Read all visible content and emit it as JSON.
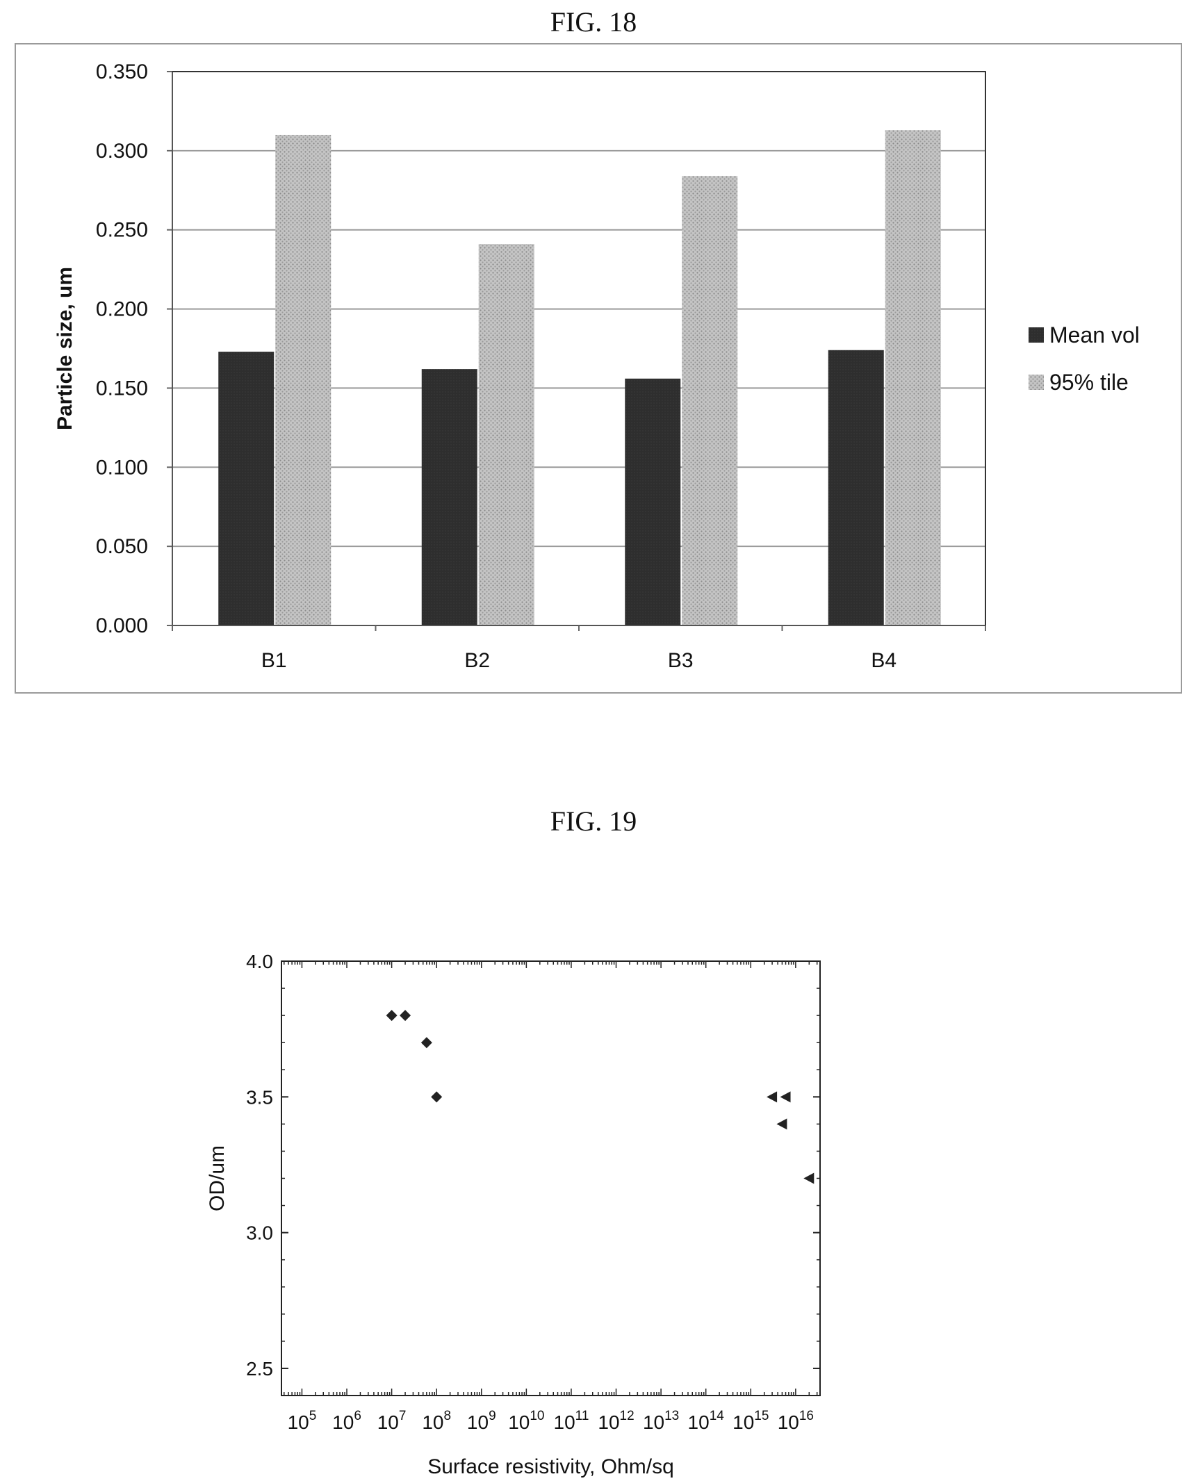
{
  "fig18": {
    "caption": "FIG. 18",
    "chart_data": {
      "type": "bar",
      "title": "",
      "xlabel": "",
      "ylabel": "Particle size, um",
      "ylim": [
        0,
        0.35
      ],
      "yticks": [
        "0.000",
        "0.050",
        "0.100",
        "0.150",
        "0.200",
        "0.250",
        "0.300",
        "0.350"
      ],
      "categories": [
        "B1",
        "B2",
        "B3",
        "B4"
      ],
      "series": [
        {
          "name": "Mean vol",
          "values": [
            0.173,
            0.162,
            0.156,
            0.174
          ],
          "color": "#2b2b2b"
        },
        {
          "name": "95% tile",
          "values": [
            0.31,
            0.241,
            0.284,
            0.313
          ],
          "color": "#bdbdbd"
        }
      ],
      "grid": true,
      "legend": "right"
    }
  },
  "fig19": {
    "caption": "FIG. 19",
    "chart_data": {
      "type": "scatter",
      "xlabel": "Surface resistivity, Ohm/sq",
      "ylabel": "OD/um",
      "xscale": "log",
      "xlim": [
        35000,
        35000000000000000
      ],
      "ylim": [
        2.4,
        4.0
      ],
      "yticks": [
        "2.5",
        "3.0",
        "3.5",
        "4.0"
      ],
      "xticks": [
        {
          "base": "10",
          "exp": "5"
        },
        {
          "base": "10",
          "exp": "6"
        },
        {
          "base": "10",
          "exp": "7"
        },
        {
          "base": "10",
          "exp": "8"
        },
        {
          "base": "10",
          "exp": "9"
        },
        {
          "base": "10",
          "exp": "10"
        },
        {
          "base": "10",
          "exp": "11"
        },
        {
          "base": "10",
          "exp": "12"
        },
        {
          "base": "10",
          "exp": "13"
        },
        {
          "base": "10",
          "exp": "14"
        },
        {
          "base": "10",
          "exp": "15"
        },
        {
          "base": "10",
          "exp": "16"
        }
      ],
      "series": [
        {
          "marker": "diamond",
          "points": [
            {
              "x": 10000000,
              "y": 3.8
            },
            {
              "x": 20000000,
              "y": 3.8
            },
            {
              "x": 60000000,
              "y": 3.7
            },
            {
              "x": 100000000,
              "y": 3.5
            }
          ]
        },
        {
          "marker": "triangle-left",
          "points": [
            {
              "x": 3000000000000000,
              "y": 3.5
            },
            {
              "x": 6000000000000000,
              "y": 3.5
            },
            {
              "x": 5000000000000000,
              "y": 3.4
            },
            {
              "x": 20000000000000000,
              "y": 3.2
            }
          ]
        }
      ],
      "grid": false
    }
  }
}
